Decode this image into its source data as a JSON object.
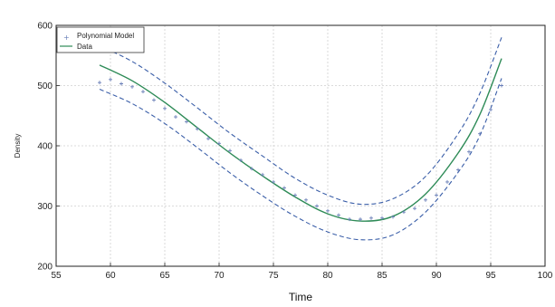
{
  "chart_data": {
    "type": "line",
    "title": "",
    "xlabel": "Time",
    "ylabel": "Density",
    "xlim": [
      55,
      100
    ],
    "ylim": [
      200,
      600
    ],
    "xticks": [
      55,
      60,
      65,
      70,
      75,
      80,
      85,
      90,
      95,
      100
    ],
    "yticks": [
      200,
      300,
      400,
      500,
      600
    ],
    "grid": true,
    "legend_position": "top-left",
    "legend": [
      "Polynomial Model",
      "Data"
    ],
    "series": [
      {
        "name": "Polynomial Model",
        "style": "markers",
        "color": "#6a7fb8",
        "x": [
          59,
          60,
          61,
          62,
          63,
          64,
          65,
          66,
          67,
          68,
          69,
          70,
          71,
          72,
          73,
          74,
          75,
          76,
          77,
          78,
          79,
          80,
          81,
          82,
          83,
          84,
          85,
          86,
          87,
          88,
          89,
          90,
          91,
          92,
          93,
          94,
          95,
          96
        ],
        "y": [
          505,
          510,
          503,
          498,
          490,
          476,
          462,
          448,
          440,
          428,
          412,
          404,
          392,
          376,
          362,
          352,
          340,
          330,
          318,
          310,
          300,
          292,
          285,
          278,
          278,
          280,
          280,
          282,
          290,
          296,
          310,
          318,
          340,
          360,
          390,
          420,
          460,
          500
        ]
      },
      {
        "name": "Data",
        "style": "solid",
        "color": "#2e8b57",
        "x": [
          59,
          62,
          65,
          68,
          71,
          74,
          77,
          80,
          83,
          86,
          89,
          92,
          94,
          96
        ],
        "y": [
          534,
          508,
          472,
          430,
          388,
          350,
          315,
          287,
          275,
          283,
          320,
          388,
          452,
          545
        ]
      },
      {
        "name": "",
        "style": "dashed",
        "color": "#3a5ea8",
        "x": [
          59,
          62,
          65,
          68,
          71,
          74,
          77,
          80,
          83,
          86,
          89,
          92,
          94,
          96
        ],
        "y": [
          566,
          540,
          504,
          463,
          421,
          383,
          346,
          318,
          303,
          312,
          349,
          420,
          487,
          580
        ]
      },
      {
        "name": "",
        "style": "dashed",
        "color": "#3a5ea8",
        "x": [
          59,
          62,
          65,
          68,
          71,
          74,
          77,
          80,
          83,
          86,
          89,
          92,
          94,
          96
        ],
        "y": [
          494,
          470,
          437,
          397,
          355,
          317,
          283,
          257,
          244,
          252,
          290,
          356,
          417,
          512
        ]
      }
    ]
  }
}
